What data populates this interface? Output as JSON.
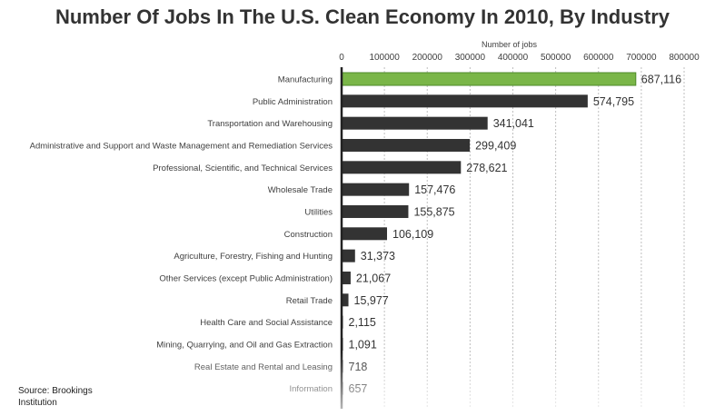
{
  "chart_data": {
    "type": "bar",
    "orientation": "horizontal",
    "title": "Number Of Jobs In The U.S. Clean Economy In 2010, By Industry",
    "xlabel": "Number  of jobs",
    "ylabel": "",
    "xlim": [
      0,
      800000
    ],
    "x_ticks": [
      "0",
      "100000",
      "200000",
      "300000",
      "400000",
      "500000",
      "600000",
      "700000",
      "800000"
    ],
    "x_tick_values": [
      0,
      100000,
      200000,
      300000,
      400000,
      500000,
      600000,
      700000,
      800000
    ],
    "axis_position": "top",
    "grid": true,
    "categories": [
      "Manufacturing",
      "Public Administration",
      "Transportation and Warehousing",
      "Administrative and Support and Waste Management and Remediation Services",
      "Professional, Scientific, and Technical Services",
      "Wholesale Trade",
      "Utilities",
      "Construction",
      "Agriculture, Forestry, Fishing and Hunting",
      "Other Services (except Public Administration)",
      "Retail Trade",
      "Health Care and Social Assistance",
      "Mining, Quarrying, and Oil and Gas Extraction",
      "Real Estate and Rental and Leasing",
      "Information"
    ],
    "values": [
      687116,
      574795,
      341041,
      299409,
      278621,
      157476,
      155875,
      106109,
      31373,
      21067,
      15977,
      2115,
      1091,
      718,
      657
    ],
    "value_labels": [
      "687,116",
      "574,795",
      "341,041",
      "299,409",
      "278,621",
      "157,476",
      "155,875",
      "106,109",
      "31,373",
      "21,067",
      "15,977",
      "2,115",
      "1,091",
      "718",
      "657"
    ],
    "highlight_index": 0,
    "colors": {
      "bar": "#333333",
      "highlight": "#7ab648",
      "highlight_border": "#4e8a2a",
      "grid": "#bfbfbf",
      "text": "#404040"
    }
  },
  "source_note": "Source: Brookings Institution"
}
